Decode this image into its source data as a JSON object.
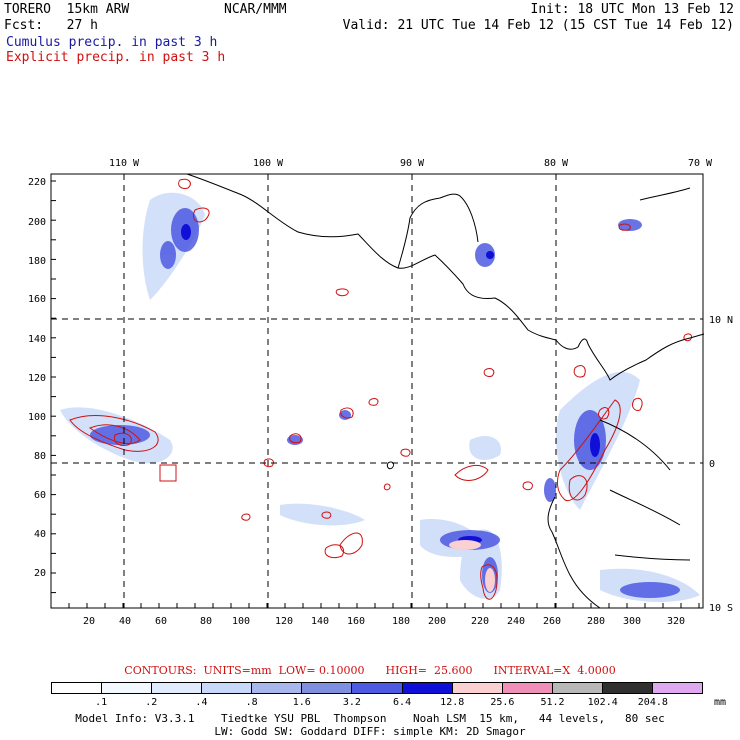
{
  "header": {
    "model": "TORERO  15km ARW",
    "center": "NCAR/MMM",
    "init": "Init: 18 UTC Mon 13 Feb 12",
    "fcst": "Fcst:   27 h",
    "valid": "Valid: 21 UTC Tue 14 Feb 12 (15 CST Tue 14 Feb 12)",
    "cumulus": "Cumulus precip. in past 3 h",
    "explicit": "Explicit precip. in past 3 h"
  },
  "map": {
    "top_lon_labels": [
      "110 W",
      "100 W",
      "90 W",
      "80 W",
      "70 W"
    ],
    "right_lat_labels": [
      "10 N",
      "0",
      "10 S"
    ],
    "left_y_ticks": [
      "220",
      "200",
      "180",
      "160",
      "140",
      "120",
      "100",
      "80",
      "60",
      "40",
      "20"
    ],
    "bottom_x_ticks": [
      "20",
      "40",
      "60",
      "80",
      "100",
      "120",
      "140",
      "160",
      "180",
      "200",
      "220",
      "240",
      "260",
      "280",
      "300",
      "320"
    ]
  },
  "contours": {
    "text": "CONTOURS:  UNITS=mm  LOW= 0.10000      HIGH=  25.600      INTERVAL=X  4.0000"
  },
  "legend": {
    "colors": [
      "#ffffff",
      "#f4f8ff",
      "#e2ecff",
      "#c8d8f8",
      "#a8b8ec",
      "#7f90e0",
      "#4e5ae2",
      "#0f0fd8",
      "#fad0d0",
      "#f090b8",
      "#b8b8b8",
      "#303030",
      "#e0a8f0"
    ],
    "labels": [
      ".1",
      ".2",
      ".4",
      ".8",
      "1.6",
      "3.2",
      "6.4",
      "12.8",
      "25.6",
      "51.2",
      "102.4",
      "204.8"
    ],
    "units": "mm"
  },
  "footer": {
    "line1": "Model Info: V3.3.1    Tiedtke YSU PBL  Thompson    Noah LSM  15 km,   44 levels,   80 sec",
    "line2": "LW: Godd SW: Goddard DIFF: simple KM: 2D Smagor"
  }
}
